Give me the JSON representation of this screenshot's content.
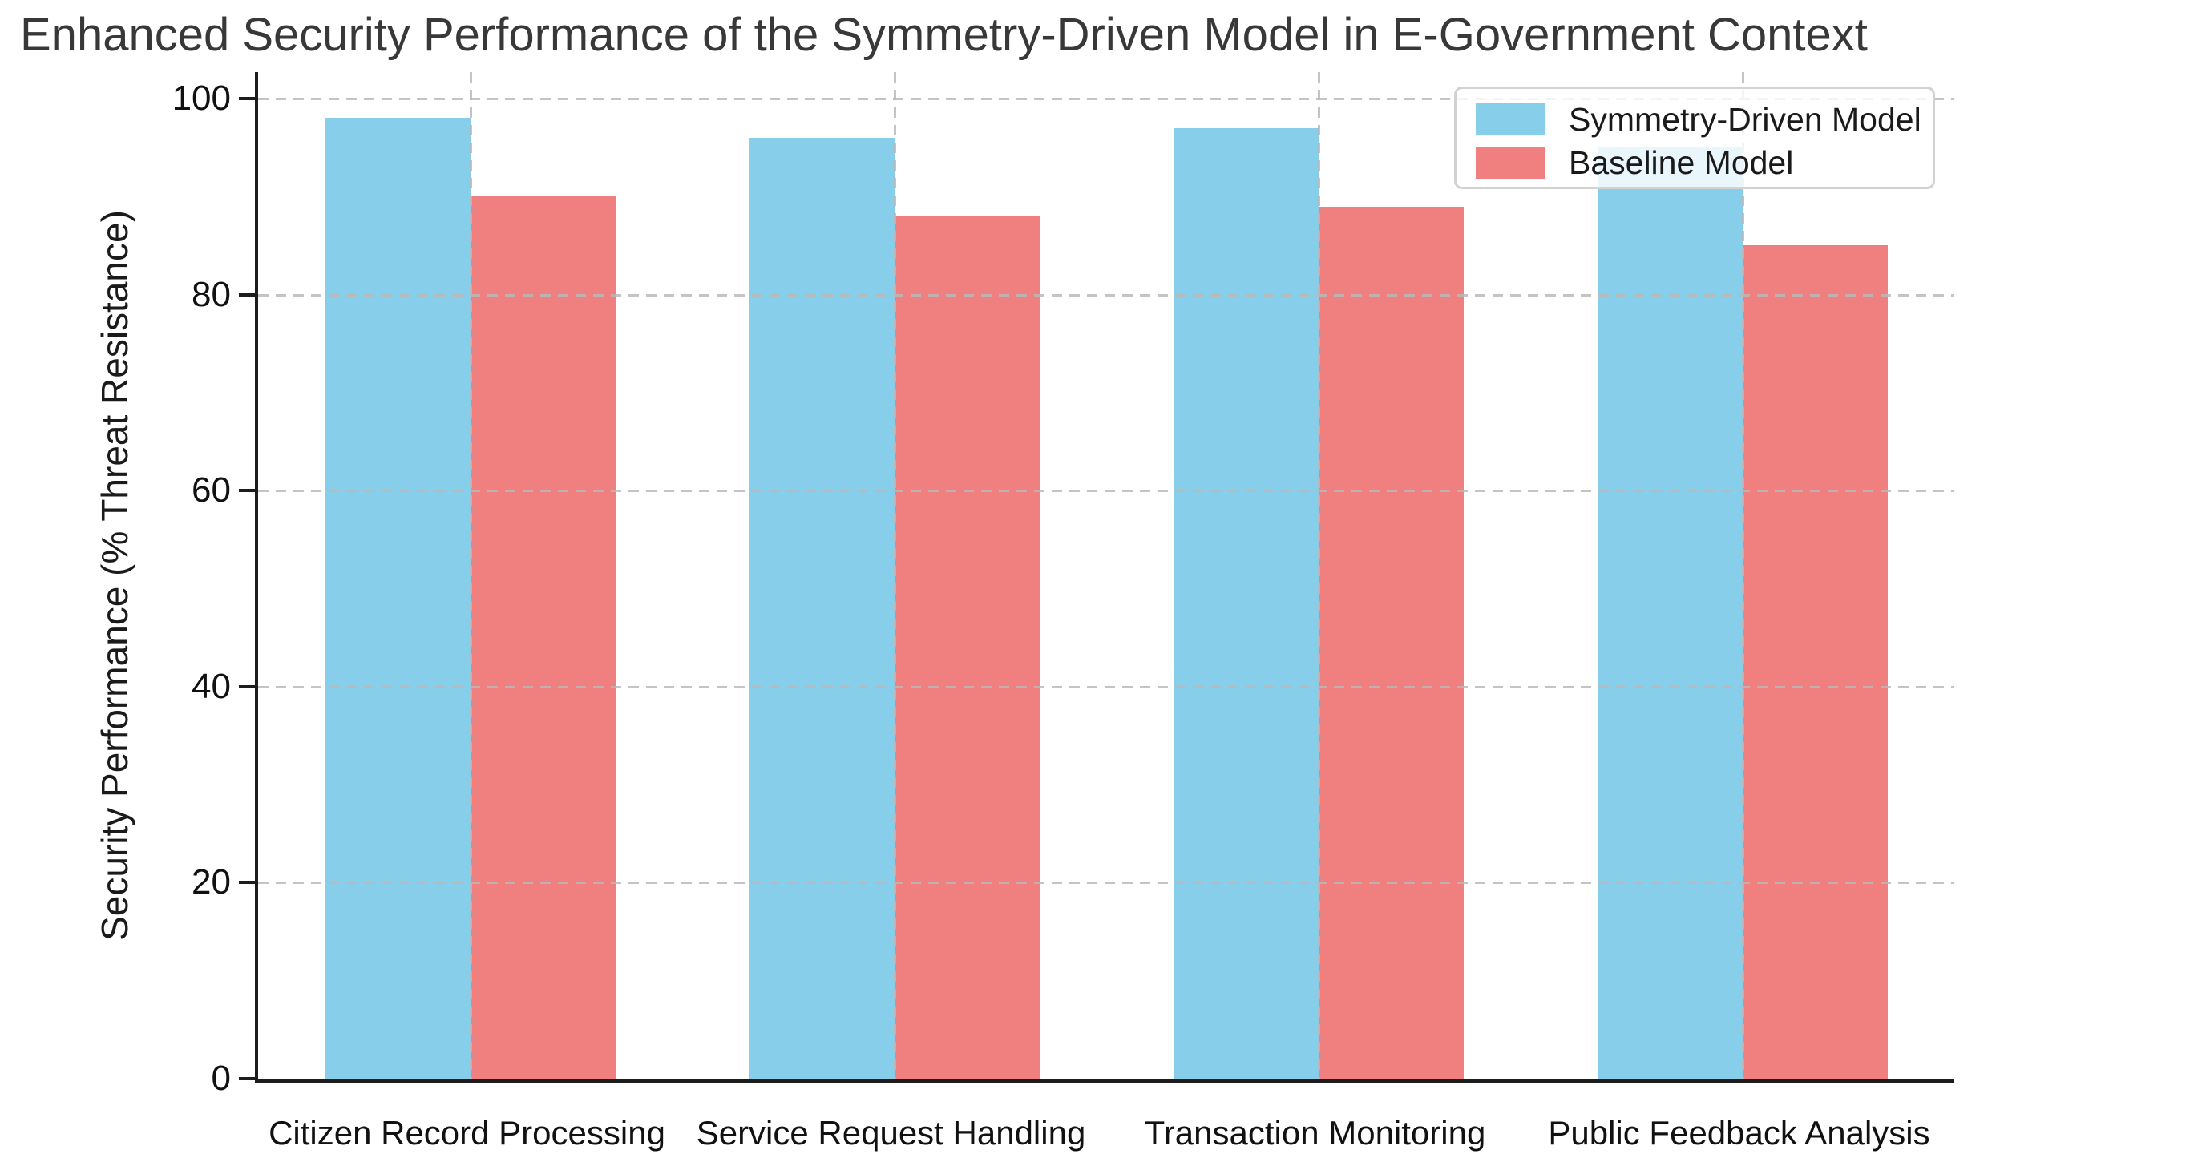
{
  "figure": {
    "background": "#ffffff"
  },
  "chart_data": {
    "type": "bar",
    "title": "Enhanced Security Performance of the Symmetry-Driven Model in E-Government Context",
    "categories": [
      "Citizen Record Processing",
      "Service Request Handling",
      "Transaction Monitoring",
      "Public Feedback Analysis"
    ],
    "series": [
      {
        "name": "Symmetry-Driven Model",
        "color": "#87CEEB",
        "values": [
          98,
          96,
          97,
          95
        ]
      },
      {
        "name": "Baseline Model",
        "color": "#F08080",
        "values": [
          90,
          88,
          89,
          85
        ]
      }
    ],
    "xlabel": "",
    "ylabel": "Security Performance (% Threat Resistance)",
    "ylim": [
      0,
      100
    ],
    "yticks": [
      0,
      20,
      40,
      60,
      80,
      100
    ],
    "grid": "dashed light-gray gridlines on both axes",
    "legend_position": "upper right",
    "colors": {
      "symmetry_driven": "#87CEEB",
      "baseline": "#F08080",
      "grid": "#b9b9b9",
      "spine": "#1c1c1c",
      "title_text": "#383838"
    }
  }
}
